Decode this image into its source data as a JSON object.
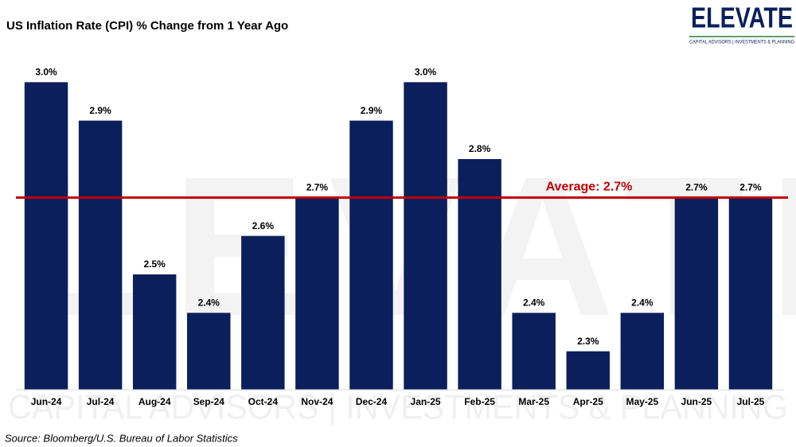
{
  "chart_data": {
    "type": "bar",
    "title": "US Inflation Rate (CPI) % Change from 1 Year Ago",
    "categories": [
      "Jun-24",
      "Jul-24",
      "Aug-24",
      "Sep-24",
      "Oct-24",
      "Nov-24",
      "Dec-24",
      "Jan-25",
      "Feb-25",
      "Mar-25",
      "Apr-25",
      "May-25",
      "Jun-25",
      "Jul-25"
    ],
    "values": [
      3.0,
      2.9,
      2.5,
      2.4,
      2.6,
      2.7,
      2.9,
      3.0,
      2.8,
      2.4,
      2.3,
      2.4,
      2.7,
      2.7
    ],
    "value_labels": [
      "3.0%",
      "2.9%",
      "2.5%",
      "2.4%",
      "2.6%",
      "2.7%",
      "2.9%",
      "3.0%",
      "2.8%",
      "2.4%",
      "2.3%",
      "2.4%",
      "2.7%",
      "2.7%"
    ],
    "color": "#0b1f5c",
    "ylim": [
      2.2,
      3.1
    ],
    "average": {
      "value": 2.7,
      "label": "Average: 2.7%",
      "color": "#c00000"
    },
    "source": "Source: Bloomberg/U.S. Bureau of Labor Statistics"
  },
  "logo": {
    "name": "ELEVATE",
    "tagline": "CAPITAL ADVISORS | INVESTMENTS & PLANNING"
  }
}
